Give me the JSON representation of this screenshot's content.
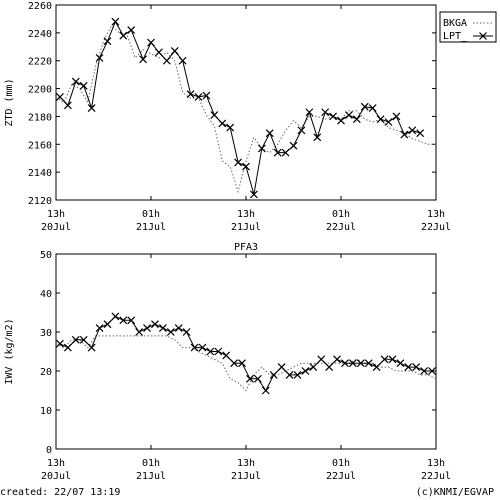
{
  "footer": {
    "created": "created: 22/07 13:19",
    "credit": "(c)KNMI/EGVAP"
  },
  "chart_data": [
    {
      "type": "line",
      "title": "",
      "xlabel": "",
      "ylabel": "ZTD (mm)",
      "ylim": [
        2120,
        2260
      ],
      "yticks": [
        2120,
        2140,
        2160,
        2180,
        2200,
        2220,
        2240,
        2260
      ],
      "xlim": [
        0,
        48
      ],
      "xticks": [
        {
          "x": 0,
          "line1": "13h",
          "line2": "20Jul"
        },
        {
          "x": 12,
          "line1": "01h",
          "line2": "21Jul"
        },
        {
          "x": 24,
          "line1": "13h",
          "line2": "21Jul"
        },
        {
          "x": 36,
          "line1": "01h",
          "line2": "22Jul"
        },
        {
          "x": 48,
          "line1": "13h",
          "line2": "22Jul"
        }
      ],
      "grid": false,
      "legend": "top-right outside",
      "series": [
        {
          "name": "BKGA",
          "style": "dotted",
          "x": [
            0,
            1,
            2,
            3,
            4,
            5,
            6,
            7,
            8,
            9,
            10,
            11,
            12,
            13,
            14,
            15,
            16,
            17,
            18,
            19,
            20,
            21,
            22,
            23,
            24,
            25,
            26,
            27,
            28,
            29,
            30,
            31,
            32,
            33,
            34,
            35,
            36,
            37,
            38,
            39,
            40,
            41,
            42,
            43,
            44,
            45,
            46,
            47,
            48
          ],
          "y": [
            2194,
            2190,
            2203,
            2200,
            2190,
            2216,
            2234,
            2245,
            2240,
            2238,
            2222,
            2228,
            2225,
            2222,
            2226,
            2220,
            2197,
            2193,
            2193,
            2181,
            2173,
            2148,
            2144,
            2126,
            2148,
            2165,
            2157,
            2154,
            2160,
            2170,
            2177,
            2172,
            2180,
            2180,
            2178,
            2180,
            2178,
            2184,
            2184,
            2178,
            2176,
            2178,
            2172,
            2170,
            2168,
            2164,
            2162,
            2160,
            2160
          ]
        },
        {
          "name": "LPT_",
          "style": "solid-x",
          "x": [
            0.5,
            1.5,
            2.5,
            3.5,
            4.5,
            5.5,
            6.5,
            7.5,
            8.5,
            9.5,
            11,
            12,
            13,
            14,
            15,
            16,
            17,
            18,
            19,
            20,
            21,
            22,
            23,
            24,
            25,
            26,
            27,
            28,
            29,
            30,
            31,
            32,
            33,
            34,
            35,
            36,
            37,
            38,
            39,
            40,
            41,
            42,
            43,
            44,
            45,
            46
          ],
          "y": [
            2194,
            2188,
            2205,
            2202,
            2186,
            2222,
            2234,
            2248,
            2238,
            2242,
            2221,
            2233,
            2226,
            2220,
            2227,
            2220,
            2196,
            2194,
            2195,
            2181,
            2175,
            2172,
            2147,
            2144,
            2124,
            2157,
            2168,
            2154,
            2154,
            2159,
            2170,
            2183,
            2165,
            2183,
            2180,
            2177,
            2181,
            2178,
            2187,
            2186,
            2178,
            2176,
            2180,
            2167,
            2170,
            2168
          ]
        }
      ]
    },
    {
      "type": "line",
      "title": "PFA3",
      "xlabel": "",
      "ylabel": "IWV (kg/m2)",
      "ylim": [
        0,
        50
      ],
      "yticks": [
        0,
        10,
        20,
        30,
        40,
        50
      ],
      "xlim": [
        0,
        48
      ],
      "xticks": [
        {
          "x": 0,
          "line1": "13h",
          "line2": "20Jul"
        },
        {
          "x": 12,
          "line1": "01h",
          "line2": "21Jul"
        },
        {
          "x": 24,
          "line1": "13h",
          "line2": "21Jul"
        },
        {
          "x": 36,
          "line1": "01h",
          "line2": "22Jul"
        },
        {
          "x": 48,
          "line1": "13h",
          "line2": "22Jul"
        }
      ],
      "grid": false,
      "legend": "none",
      "series": [
        {
          "name": "",
          "style": "dotted",
          "x": [
            0,
            1,
            2,
            3,
            4,
            5,
            10,
            14,
            15,
            16,
            17,
            18,
            19,
            20,
            21,
            22,
            23,
            24,
            25,
            26,
            27,
            28,
            29,
            30,
            31,
            32,
            33,
            34,
            35,
            36,
            37,
            38,
            39,
            40,
            41,
            42,
            43,
            44,
            45,
            46,
            47,
            48
          ],
          "y": [
            27,
            26,
            28,
            28,
            26,
            29,
            29,
            29,
            28,
            26,
            26,
            25,
            24,
            23,
            22,
            18,
            17,
            15,
            19,
            21,
            19,
            19,
            20,
            21,
            22,
            22,
            22,
            22,
            22,
            22,
            22,
            23,
            22,
            22,
            21,
            21,
            20,
            20,
            20,
            19,
            19,
            18
          ]
        },
        {
          "name": "",
          "style": "solid-x",
          "x": [
            0.5,
            1.5,
            2.5,
            3.5,
            4.5,
            5.5,
            6.5,
            7.5,
            8.5,
            9.5,
            10.5,
            11.5,
            12.5,
            13.5,
            14.5,
            15.5,
            16.5,
            17.5,
            18.5,
            19.5,
            20.5,
            21.5,
            22.5,
            23.5,
            24.5,
            25.5,
            26.5,
            27.5,
            28.5,
            29.5,
            30.5,
            31.5,
            32.5,
            33.5,
            34.5,
            35.5,
            36.5,
            37.5,
            38.5,
            39.5,
            40.5,
            41.5,
            42.5,
            43.5,
            44.5,
            45.5,
            46.5,
            47.5
          ],
          "y": [
            27,
            26,
            28,
            28,
            26,
            31,
            32,
            34,
            33,
            33,
            30,
            31,
            32,
            31,
            30,
            31,
            30,
            26,
            26,
            25,
            25,
            24,
            22,
            22,
            18,
            18,
            15,
            19,
            21,
            19,
            19,
            20,
            21,
            23,
            21,
            23,
            22,
            22,
            22,
            22,
            21,
            23,
            23,
            22,
            21,
            21,
            20,
            20
          ]
        }
      ]
    }
  ]
}
